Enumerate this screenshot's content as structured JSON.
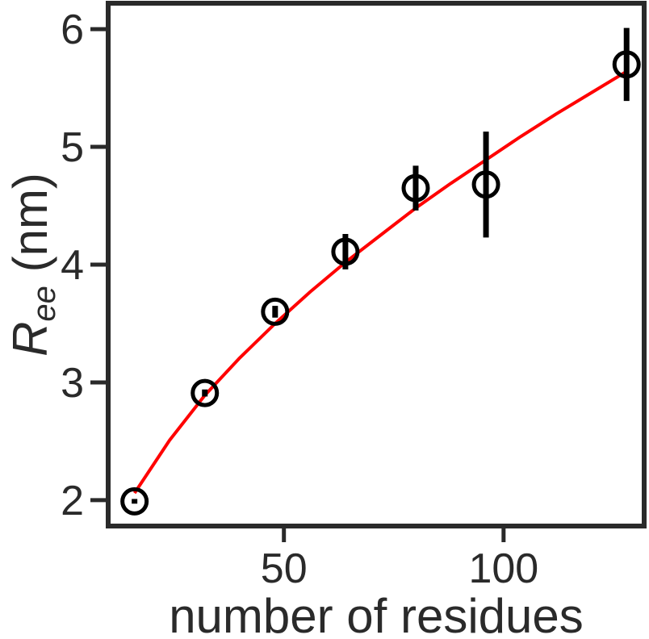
{
  "chart_data": {
    "type": "scatter",
    "xlabel": "number of residues",
    "ylabel_main": "R",
    "ylabel_sub": "ee",
    "ylabel_unit": " (nm)",
    "xlim": [
      10,
      132
    ],
    "ylim": [
      1.78,
      6.22
    ],
    "xticks": [
      50,
      100
    ],
    "yticks": [
      2,
      3,
      4,
      5,
      6
    ],
    "grid": false,
    "points": [
      {
        "x": 16,
        "y": 1.99,
        "err": 0.02
      },
      {
        "x": 32,
        "y": 2.91,
        "err": 0.03
      },
      {
        "x": 48,
        "y": 3.6,
        "err": 0.05
      },
      {
        "x": 64,
        "y": 4.11,
        "err": 0.15
      },
      {
        "x": 80,
        "y": 4.65,
        "err": 0.19
      },
      {
        "x": 96,
        "y": 4.68,
        "err": 0.45
      },
      {
        "x": 128,
        "y": 5.7,
        "err": 0.31
      }
    ],
    "fit": {
      "color": "#ff0000",
      "x": [
        16,
        24,
        32,
        40,
        48,
        56,
        64,
        72,
        80,
        88,
        96,
        104,
        112,
        120,
        128
      ],
      "y": [
        2.06,
        2.51,
        2.89,
        3.21,
        3.5,
        3.77,
        4.02,
        4.25,
        4.48,
        4.69,
        4.89,
        5.09,
        5.28,
        5.46,
        5.64
      ]
    },
    "marker_color": "#000000"
  }
}
